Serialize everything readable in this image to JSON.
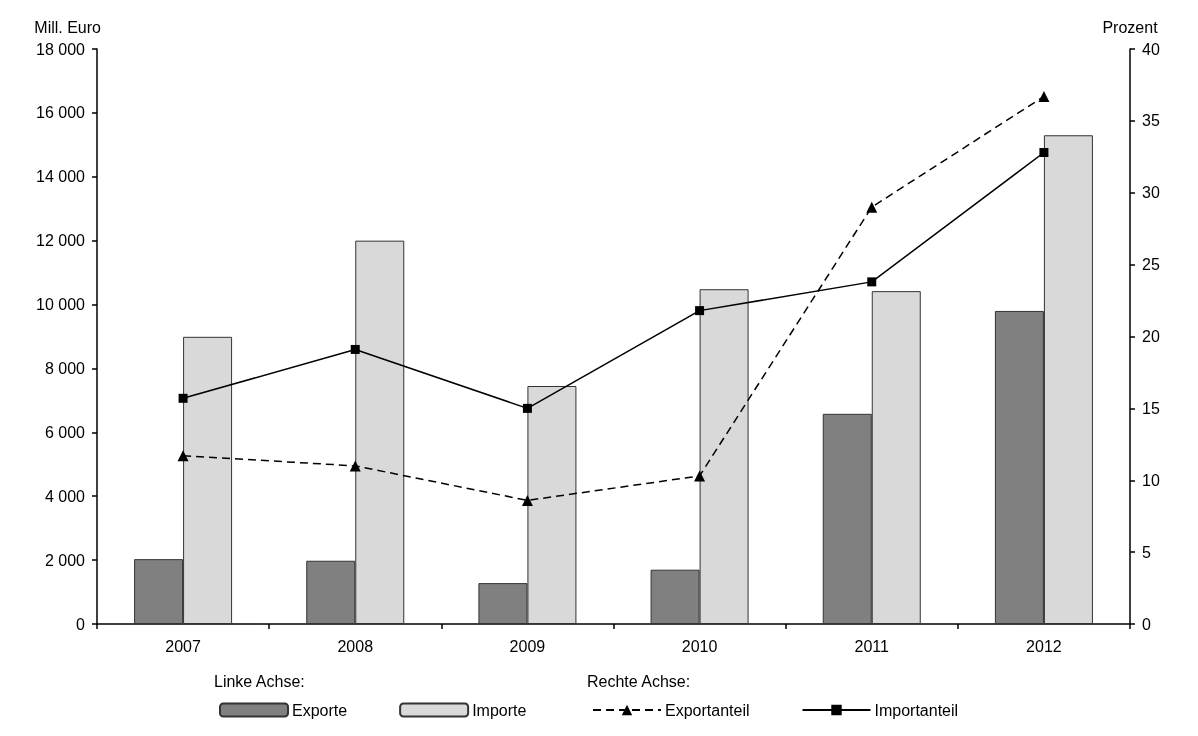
{
  "chart_data": {
    "type": "bar",
    "categories": [
      "2007",
      "2008",
      "2009",
      "2010",
      "2011",
      "2012"
    ],
    "ylabel": "Mill. Euro",
    "y2label": "Prozent",
    "ylim": [
      0,
      18000
    ],
    "yticks": [
      0,
      {
        "value": 2000,
        "label": "2 000"
      },
      {
        "value": 4000,
        "label": "4 000"
      },
      {
        "value": 6000,
        "label": "6 000"
      },
      {
        "value": 8000,
        "label": "8 000"
      },
      {
        "value": 10000,
        "label": "10 000"
      },
      {
        "value": 12000,
        "label": "12 000"
      },
      {
        "value": 14000,
        "label": "14 000"
      },
      {
        "value": 16000,
        "label": "16 000"
      },
      {
        "value": 18000,
        "label": "18 000"
      }
    ],
    "y2lim": [
      0,
      40
    ],
    "y2ticks": [
      0,
      5,
      10,
      15,
      20,
      25,
      30,
      35,
      40
    ],
    "series": [
      {
        "name": "Exporte",
        "color": "#808080",
        "values": [
          2030,
          1980,
          1280,
          1700,
          6580,
          9800
        ]
      },
      {
        "name": "Importe",
        "color": "#d9d9d9",
        "values": [
          8990,
          12000,
          7450,
          10480,
          10420,
          15300
        ]
      },
      {
        "name": "Exportanteil",
        "type": "line",
        "axis": "y2",
        "color": "#000000",
        "marker": "triangle",
        "line_style": "dashed",
        "values": [
          11.7,
          11.0,
          8.6,
          10.3,
          29.0,
          36.7
        ]
      },
      {
        "name": "Importanteil",
        "type": "line",
        "axis": "y2",
        "color": "#000000",
        "marker": "square",
        "line_style": "solid",
        "values": [
          15.7,
          19.1,
          15.0,
          21.8,
          23.8,
          32.8
        ]
      }
    ],
    "legend": "bottom",
    "grid": false,
    "annotations": [
      "Linke Achse:",
      "Rechte Achse:"
    ]
  }
}
